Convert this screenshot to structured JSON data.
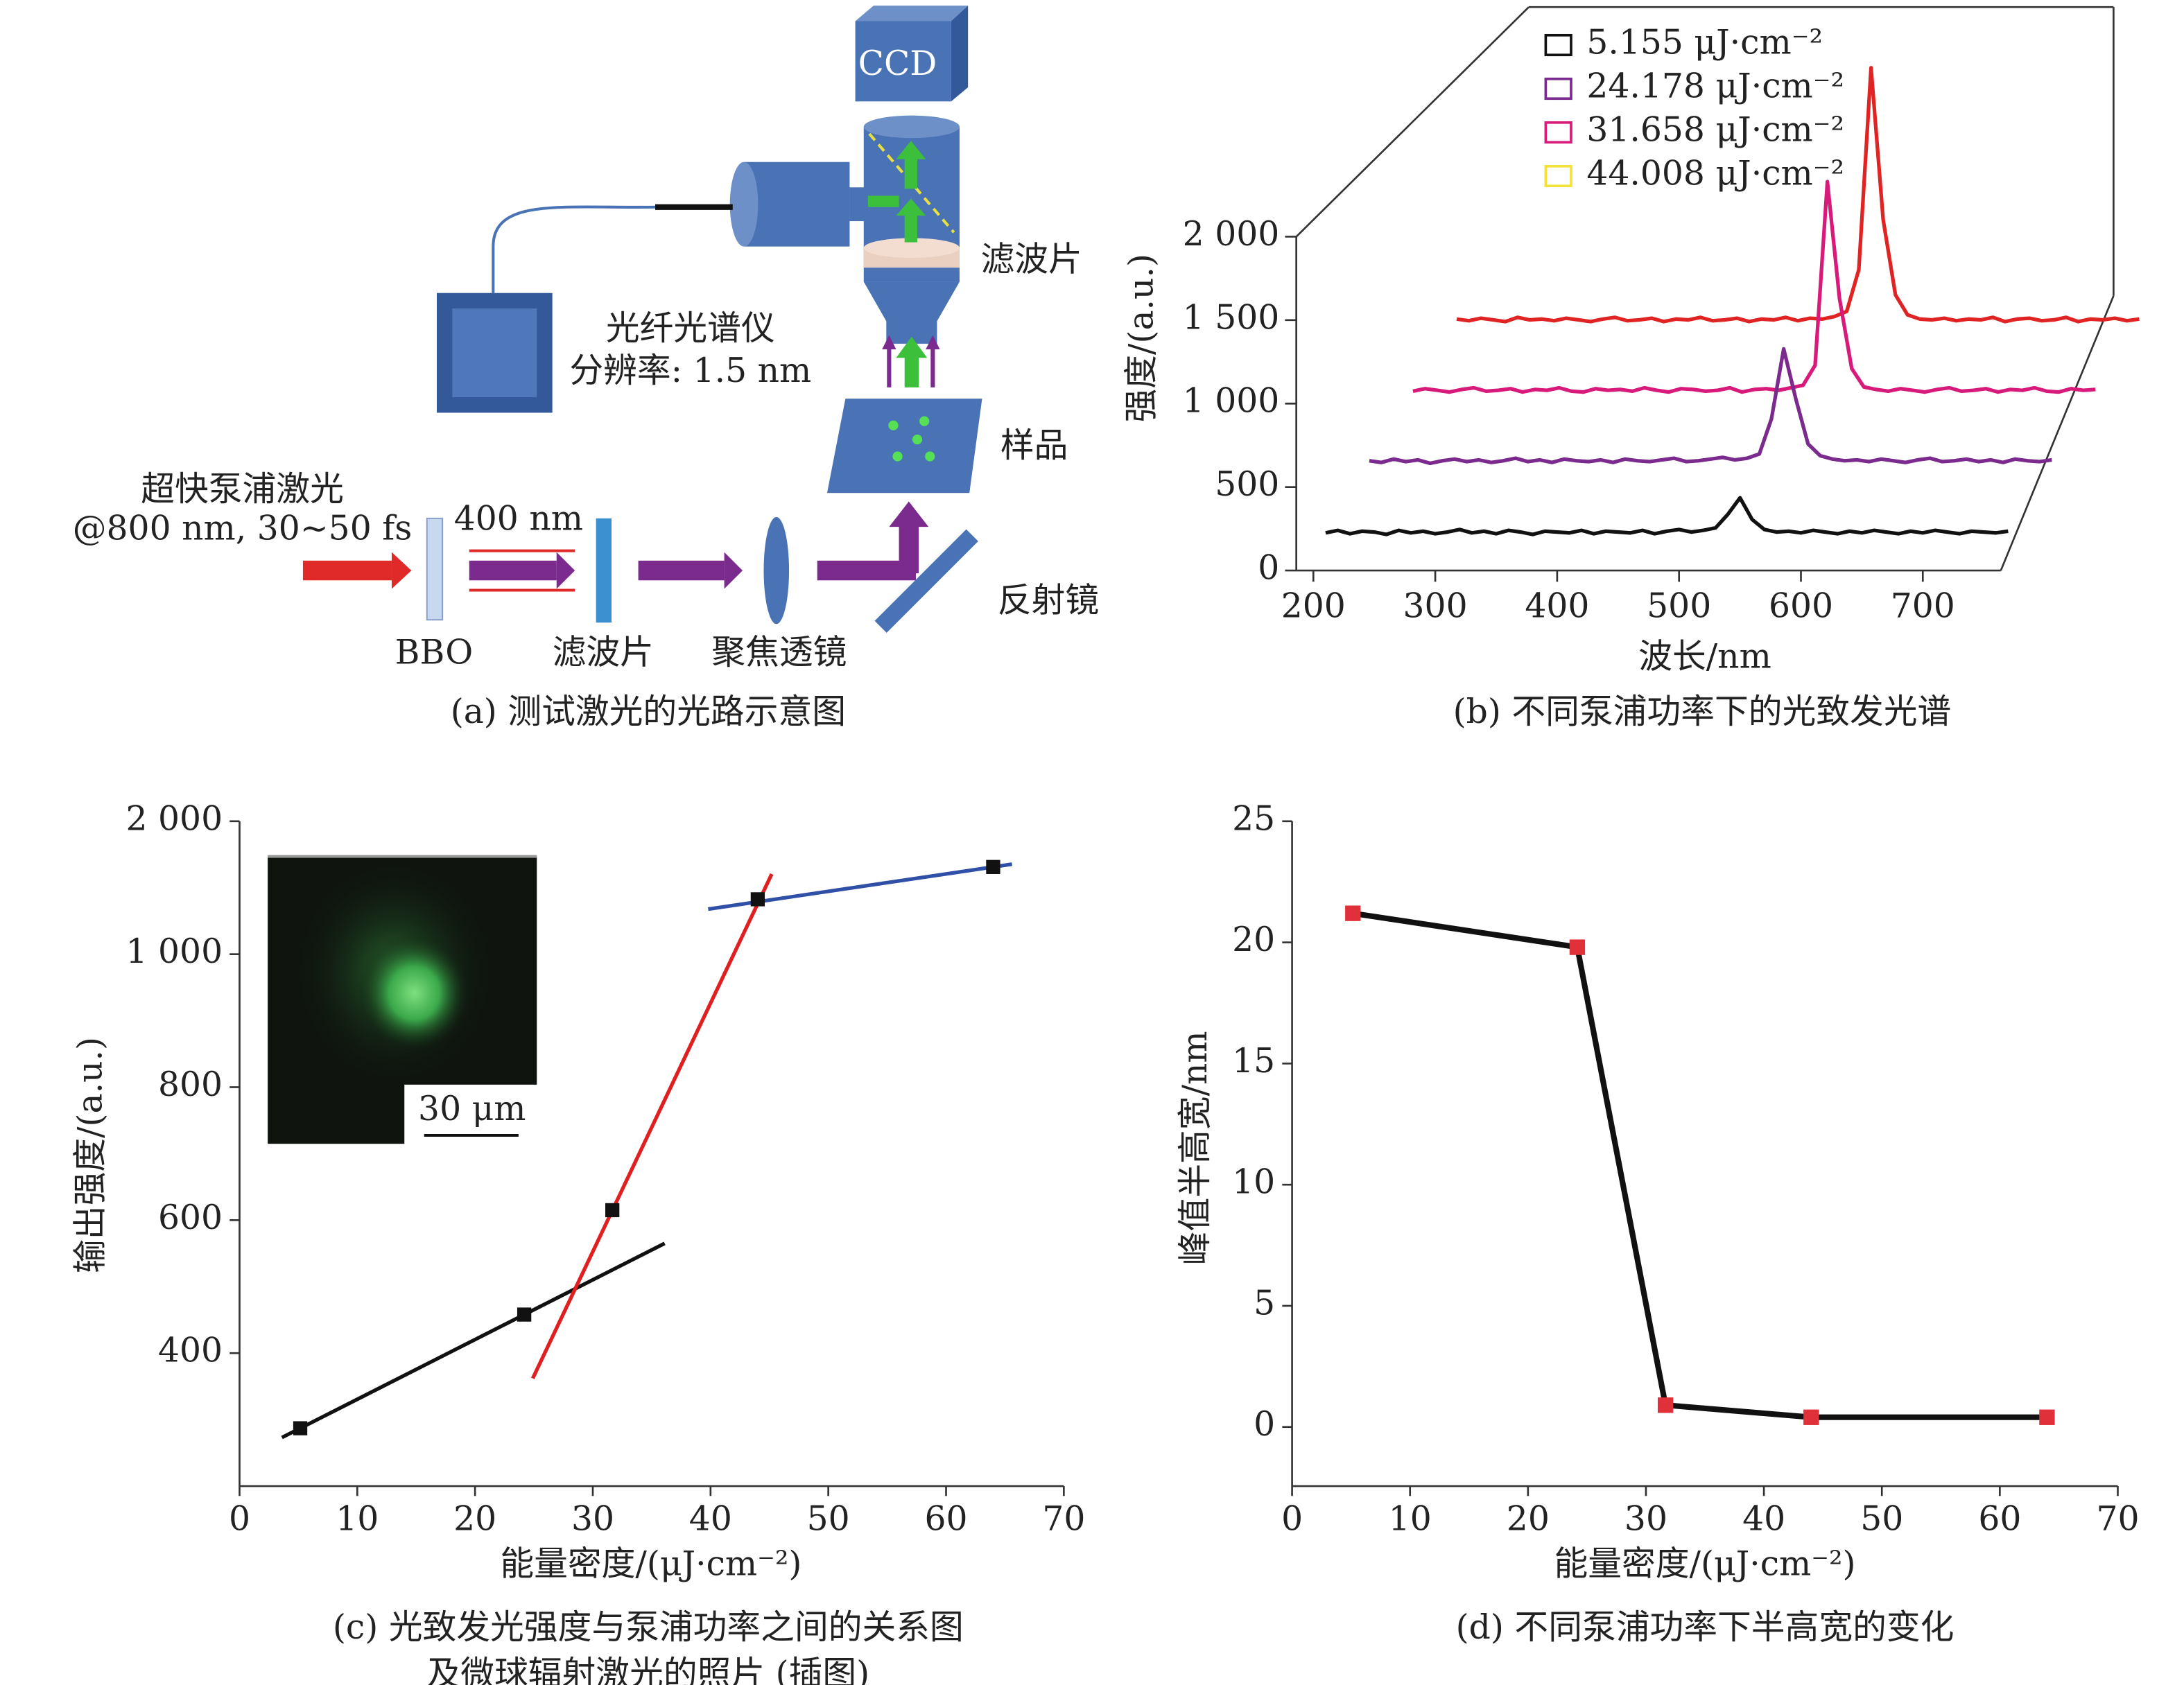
{
  "diagram": {
    "ccd": "CCD",
    "filter_top": "滤波片",
    "spectrometer": "光纤光谱仪",
    "resolution": "分辨率: 1.5 nm",
    "sample": "样品",
    "laser": "超快泵浦激光",
    "laser_spec": "@800 nm, 30~50 fs",
    "wavelength": "400 nm",
    "bbo": "BBO",
    "filter": "滤波片",
    "lens": "聚焦透镜",
    "mirror": "反射镜",
    "caption": "(a) 测试激光的光路示意图"
  },
  "chart_data": [
    {
      "type": "waterfall",
      "caption": "(b) 不同泵浦功率下的光致发光谱",
      "xlabel": "波长/nm",
      "ylabel": "强度/(a.u.)",
      "xlim": [
        186,
        764
      ],
      "xticks": [
        200,
        300,
        400,
        500,
        600,
        700
      ],
      "ylim": [
        0,
        2000
      ],
      "yticks": [
        0,
        500,
        {
          "value": 1000,
          "label": "1 000"
        },
        {
          "value": 1500,
          "label": "1 500"
        },
        {
          "value": 2000,
          "label": "2 000"
        }
      ],
      "x": [
        210,
        220,
        230,
        240,
        250,
        260,
        270,
        280,
        290,
        300,
        310,
        320,
        330,
        340,
        350,
        360,
        370,
        380,
        390,
        400,
        410,
        420,
        430,
        440,
        450,
        460,
        470,
        480,
        490,
        500,
        510,
        520,
        530,
        540,
        550,
        560,
        570,
        580,
        590,
        600,
        610,
        620,
        630,
        640,
        650,
        660,
        670,
        680,
        690,
        700,
        710,
        720,
        730,
        740,
        750,
        760,
        770
      ],
      "series": [
        {
          "name": "5.155 μJ·cm⁻²",
          "color": "#111111",
          "legend_color": "#111111",
          "values": [
            40,
            55,
            35,
            50,
            45,
            30,
            55,
            40,
            50,
            35,
            45,
            60,
            40,
            50,
            35,
            55,
            45,
            30,
            50,
            45,
            40,
            55,
            35,
            50,
            45,
            40,
            55,
            35,
            50,
            60,
            45,
            55,
            70,
            150,
            250,
            120,
            60,
            45,
            50,
            40,
            55,
            45,
            35,
            50,
            40,
            55,
            45,
            35,
            50,
            40,
            55,
            45,
            35,
            50,
            45,
            40,
            50
          ]
        },
        {
          "name": "24.178 μJ·cm⁻²",
          "color": "#7b2a8e",
          "legend_color": "#7b2a8e",
          "values": [
            50,
            40,
            60,
            45,
            55,
            35,
            50,
            60,
            45,
            55,
            40,
            50,
            65,
            45,
            55,
            40,
            60,
            50,
            45,
            55,
            40,
            60,
            50,
            45,
            55,
            65,
            45,
            50,
            60,
            70,
            55,
            65,
            90,
            300,
            720,
            420,
            150,
            80,
            60,
            50,
            55,
            45,
            60,
            50,
            40,
            55,
            65,
            45,
            50,
            60,
            45,
            55,
            40,
            60,
            50,
            45,
            55
          ]
        },
        {
          "name": "31.658 μJ·cm⁻²",
          "color": "#d81b7a",
          "legend_color": "#d81b7a",
          "values": [
            45,
            60,
            50,
            40,
            55,
            65,
            45,
            50,
            60,
            40,
            55,
            50,
            65,
            45,
            40,
            60,
            50,
            55,
            45,
            65,
            50,
            40,
            60,
            55,
            45,
            50,
            65,
            40,
            55,
            60,
            50,
            65,
            80,
            200,
            1300,
            600,
            180,
            70,
            55,
            45,
            60,
            50,
            40,
            55,
            65,
            45,
            50,
            60,
            40,
            55,
            50,
            65,
            45,
            40,
            60,
            50,
            55
          ]
        },
        {
          "name": "44.008 μJ·cm⁻²",
          "color": "#e02424",
          "legend_color": "#f2e23a",
          "values": [
            55,
            45,
            60,
            50,
            40,
            65,
            50,
            55,
            45,
            60,
            50,
            40,
            55,
            65,
            45,
            50,
            60,
            40,
            55,
            50,
            65,
            45,
            50,
            60,
            40,
            55,
            50,
            65,
            45,
            60,
            55,
            70,
            100,
            350,
            1560,
            650,
            200,
            80,
            55,
            50,
            60,
            45,
            55,
            50,
            65,
            40,
            55,
            60,
            45,
            50,
            65,
            40,
            55,
            50,
            60,
            45,
            55
          ]
        }
      ]
    },
    {
      "type": "scatter",
      "caption": [
        "(c) 光致发光强度与泵浦功率之间的关系图",
        "及微球辐射激光的照片 (插图)"
      ],
      "xlabel": "能量密度/(μJ·cm⁻²)",
      "ylabel": "输出强度/(a.u.)",
      "inset_label": "30 μm",
      "xlim": [
        0,
        70
      ],
      "xticks": [
        0,
        10,
        20,
        30,
        40,
        50,
        60,
        70
      ],
      "ylim": [
        200,
        2000
      ],
      "axis_break": true,
      "yticks": [
        400,
        600,
        800,
        {
          "value": 1000,
          "label": "1 000"
        },
        {
          "value": 2000,
          "label": "2 000"
        }
      ],
      "x": [
        5.155,
        24.178,
        31.658,
        44.008,
        64
      ],
      "values": [
        287,
        458,
        615,
        1413,
        1656
      ],
      "color": "#111111",
      "fits": [
        {
          "color": "#111111",
          "x": [
            3.6,
            36.1
          ],
          "values": [
            273,
            565
          ]
        },
        {
          "color": "#e02020",
          "x": [
            24.9,
            45.2
          ],
          "values": [
            362,
            1603
          ]
        },
        {
          "color": "#3050a8",
          "x": [
            39.8,
            65.6
          ],
          "values": [
            1339,
            1677
          ]
        }
      ]
    },
    {
      "type": "line",
      "caption": "(d) 不同泵浦功率下半高宽的变化",
      "xlabel": "能量密度/(μJ·cm⁻²)",
      "ylabel": "峰值半高宽/nm",
      "xlim": [
        0,
        70
      ],
      "xticks": [
        0,
        10,
        20,
        30,
        40,
        50,
        60,
        70
      ],
      "ylim": [
        -2.44,
        25
      ],
      "yticks": [
        0,
        5,
        10,
        15,
        20,
        25
      ],
      "x": [
        5.155,
        24.178,
        31.658,
        44.008,
        64
      ],
      "values": [
        21.2,
        19.8,
        0.9,
        0.4,
        0.4
      ],
      "color": "#111111",
      "marker_color": "#e0303a"
    }
  ]
}
